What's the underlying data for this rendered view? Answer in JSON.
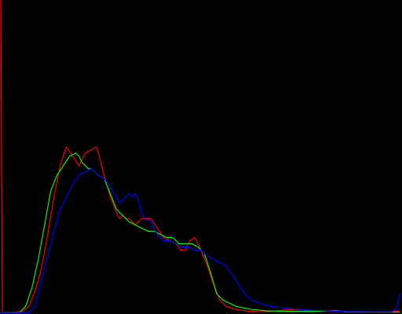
{
  "chart_data": {
    "type": "line",
    "title": "",
    "xlabel": "",
    "ylabel": "",
    "xlim": [
      0,
      255
    ],
    "ylim": [
      0,
      1
    ],
    "grid": false,
    "legend": "none",
    "background": "#000000",
    "series": [
      {
        "color": "#ff0000",
        "points": [
          [
            0,
            1
          ],
          [
            1,
            0
          ],
          [
            8,
            0
          ],
          [
            14,
            0.004
          ],
          [
            18,
            0.02
          ],
          [
            22,
            0.07
          ],
          [
            26,
            0.14
          ],
          [
            30,
            0.25
          ],
          [
            34,
            0.37
          ],
          [
            38,
            0.47
          ],
          [
            42,
            0.53
          ],
          [
            46,
            0.5
          ],
          [
            50,
            0.47
          ],
          [
            54,
            0.51
          ],
          [
            58,
            0.52
          ],
          [
            61,
            0.53
          ],
          [
            63,
            0.5
          ],
          [
            66,
            0.44
          ],
          [
            70,
            0.37
          ],
          [
            74,
            0.32
          ],
          [
            76,
            0.3
          ],
          [
            78,
            0.31
          ],
          [
            80,
            0.3
          ],
          [
            82,
            0.3
          ],
          [
            84,
            0.29
          ],
          [
            86,
            0.28
          ],
          [
            88,
            0.29
          ],
          [
            90,
            0.3
          ],
          [
            93,
            0.3
          ],
          [
            96,
            0.3
          ],
          [
            100,
            0.27
          ],
          [
            104,
            0.24
          ],
          [
            108,
            0.23
          ],
          [
            112,
            0.22
          ],
          [
            115,
            0.2
          ],
          [
            118,
            0.2
          ],
          [
            121,
            0.23
          ],
          [
            124,
            0.24
          ],
          [
            128,
            0.2
          ],
          [
            132,
            0.15
          ],
          [
            136,
            0.09
          ],
          [
            140,
            0.04
          ],
          [
            144,
            0.02
          ],
          [
            150,
            0.01
          ],
          [
            158,
            0.004
          ],
          [
            170,
            0.002
          ],
          [
            186,
            0.01
          ],
          [
            194,
            0.008
          ],
          [
            200,
            0.004
          ],
          [
            212,
            0.005
          ],
          [
            224,
            0.002
          ],
          [
            240,
            0.001
          ],
          [
            248,
            0.001
          ],
          [
            252,
            0.003
          ],
          [
            255,
            0.005
          ]
        ]
      },
      {
        "color": "#00ff00",
        "points": [
          [
            0,
            0
          ],
          [
            12,
            0
          ],
          [
            16,
            0.02
          ],
          [
            20,
            0.08
          ],
          [
            24,
            0.17
          ],
          [
            28,
            0.28
          ],
          [
            32,
            0.39
          ],
          [
            36,
            0.44
          ],
          [
            40,
            0.47
          ],
          [
            44,
            0.5
          ],
          [
            48,
            0.51
          ],
          [
            50,
            0.5
          ],
          [
            52,
            0.48
          ],
          [
            54,
            0.47
          ],
          [
            56,
            0.46
          ],
          [
            58,
            0.46
          ],
          [
            62,
            0.44
          ],
          [
            66,
            0.43
          ],
          [
            70,
            0.38
          ],
          [
            74,
            0.33
          ],
          [
            78,
            0.31
          ],
          [
            82,
            0.29
          ],
          [
            86,
            0.28
          ],
          [
            90,
            0.27
          ],
          [
            94,
            0.26
          ],
          [
            98,
            0.26
          ],
          [
            102,
            0.25
          ],
          [
            106,
            0.24
          ],
          [
            110,
            0.24
          ],
          [
            114,
            0.22
          ],
          [
            118,
            0.22
          ],
          [
            122,
            0.22
          ],
          [
            126,
            0.21
          ],
          [
            130,
            0.19
          ],
          [
            134,
            0.13
          ],
          [
            138,
            0.06
          ],
          [
            142,
            0.04
          ],
          [
            150,
            0.02
          ],
          [
            160,
            0.01
          ],
          [
            170,
            0.005
          ],
          [
            180,
            0.004
          ],
          [
            200,
            0.003
          ],
          [
            214,
            0.006
          ],
          [
            220,
            0.002
          ],
          [
            240,
            0.001
          ],
          [
            255,
            0.001
          ]
        ]
      },
      {
        "color": "#0000ff",
        "points": [
          [
            0,
            0
          ],
          [
            18,
            0
          ],
          [
            22,
            0.02
          ],
          [
            26,
            0.1
          ],
          [
            30,
            0.18
          ],
          [
            34,
            0.26
          ],
          [
            38,
            0.33
          ],
          [
            42,
            0.37
          ],
          [
            46,
            0.41
          ],
          [
            50,
            0.44
          ],
          [
            54,
            0.45
          ],
          [
            58,
            0.46
          ],
          [
            62,
            0.44
          ],
          [
            66,
            0.43
          ],
          [
            70,
            0.4
          ],
          [
            74,
            0.37
          ],
          [
            76,
            0.35
          ],
          [
            78,
            0.36
          ],
          [
            80,
            0.37
          ],
          [
            82,
            0.38
          ],
          [
            84,
            0.37
          ],
          [
            86,
            0.38
          ],
          [
            88,
            0.36
          ],
          [
            90,
            0.32
          ],
          [
            92,
            0.3
          ],
          [
            96,
            0.29
          ],
          [
            100,
            0.25
          ],
          [
            104,
            0.23
          ],
          [
            108,
            0.23
          ],
          [
            112,
            0.22
          ],
          [
            116,
            0.21
          ],
          [
            120,
            0.21
          ],
          [
            124,
            0.2
          ],
          [
            128,
            0.2
          ],
          [
            132,
            0.18
          ],
          [
            136,
            0.17
          ],
          [
            140,
            0.16
          ],
          [
            144,
            0.15
          ],
          [
            148,
            0.12
          ],
          [
            152,
            0.09
          ],
          [
            156,
            0.06
          ],
          [
            160,
            0.04
          ],
          [
            166,
            0.03
          ],
          [
            172,
            0.02
          ],
          [
            180,
            0.015
          ],
          [
            190,
            0.01
          ],
          [
            200,
            0.007
          ],
          [
            210,
            0.005
          ],
          [
            220,
            0.003
          ],
          [
            240,
            0.002
          ],
          [
            250,
            0.002
          ],
          [
            253,
            0.01
          ],
          [
            255,
            0.06
          ]
        ]
      }
    ]
  }
}
